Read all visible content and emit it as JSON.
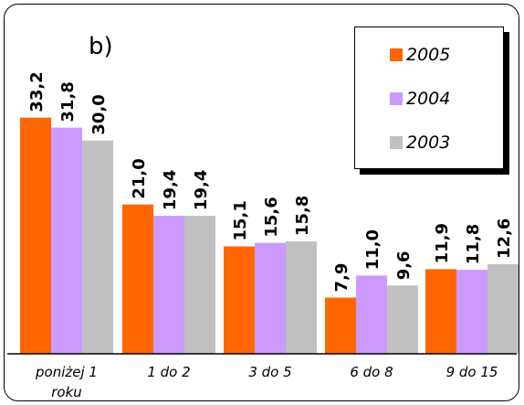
{
  "panel_label": "b)",
  "chart_data": {
    "type": "bar",
    "categories": [
      "poniżej 1 roku",
      "1 do 2",
      "3 do 5",
      "6 do 8",
      "9 do 15"
    ],
    "category_lines": [
      [
        "poniżej 1",
        "roku"
      ],
      [
        "1 do 2"
      ],
      [
        "3 do 5"
      ],
      [
        "6 do 8"
      ],
      [
        "9 do 15"
      ]
    ],
    "series": [
      {
        "name": "2005",
        "color": "#ff6600",
        "values": [
          33.2,
          21.0,
          15.1,
          7.9,
          11.9
        ]
      },
      {
        "name": "2004",
        "color": "#cc99ff",
        "values": [
          31.8,
          19.4,
          15.6,
          11.0,
          11.8
        ]
      },
      {
        "name": "2003",
        "color": "#c0c0c0",
        "values": [
          30.0,
          19.4,
          15.8,
          9.6,
          12.6
        ]
      }
    ],
    "value_labels": [
      [
        "33,2",
        "21,0",
        "15,1",
        "7,9",
        "11,9"
      ],
      [
        "31,8",
        "19,4",
        "15,6",
        "11,0",
        "11,8"
      ],
      [
        "30,0",
        "19,4",
        "15,8",
        "9,6",
        "12,6"
      ]
    ],
    "legend": {
      "position": "top-right",
      "order": [
        "2005",
        "2004",
        "2003"
      ]
    },
    "ylim": [
      0,
      40
    ],
    "grid": false,
    "title": "",
    "xlabel": "",
    "ylabel": ""
  }
}
